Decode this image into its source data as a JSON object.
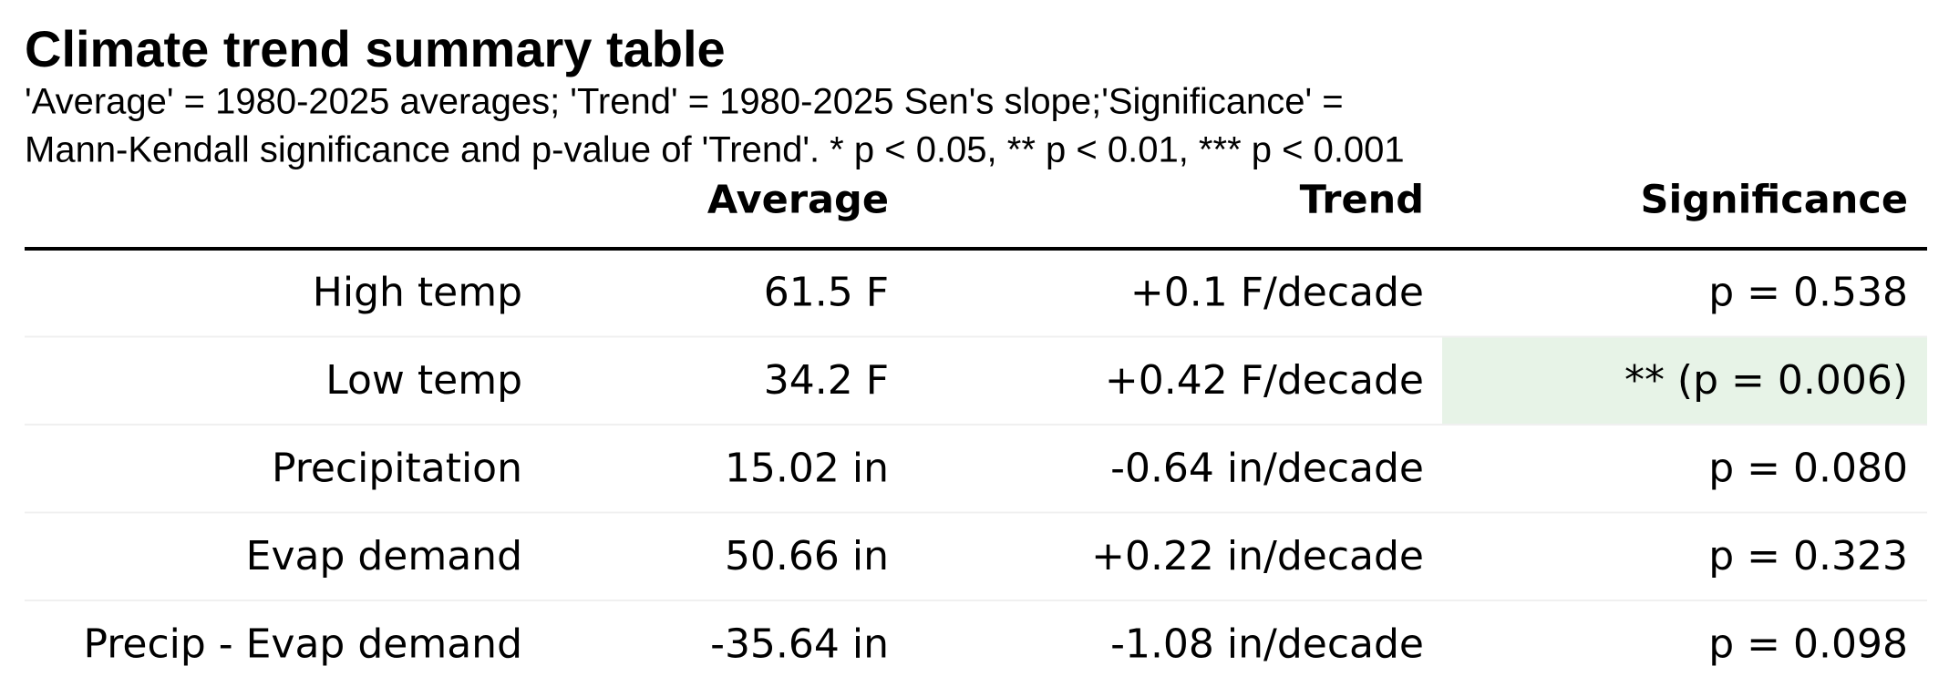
{
  "header": {
    "title": "Climate trend summary table",
    "subtitle": [
      "'Average' = 1980-2025 averages; 'Trend' = 1980-2025 Sen's slope;'Significance' =",
      "Mann-Kendall significance and p-value of 'Trend'. * p < 0.05, ** p < 0.01, *** p < 0.001"
    ]
  },
  "table": {
    "columns": [
      "Average",
      "Trend",
      "Significance"
    ],
    "rows": [
      [
        "High temp",
        "61.5 F",
        "+0.1 F/decade",
        "p = 0.538"
      ],
      [
        "Low temp",
        "34.2 F",
        "+0.42 F/decade",
        "** (p = 0.006)"
      ],
      [
        "Precipitation",
        "15.02 in",
        "-0.64 in/decade",
        "p = 0.080"
      ],
      [
        "Evap demand",
        "50.66 in",
        "+0.22 in/decade",
        "p = 0.323"
      ],
      [
        "Precip - Evap demand",
        "-35.64 in",
        "-1.08 in/decade",
        "p = 0.098"
      ]
    ]
  }
}
